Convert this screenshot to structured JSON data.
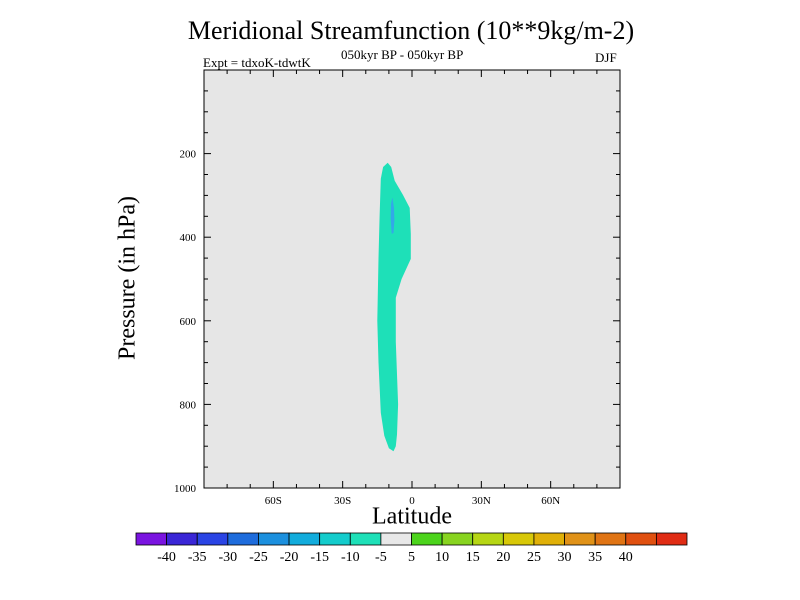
{
  "chart_data": {
    "type": "heatmap",
    "title": "Meridional Streamfunction (10**9kg/m-2)",
    "subtitle": "050kyr BP - 050kyr BP",
    "left_label": "Expt = tdxoK-tdwtK",
    "right_label": "DJF",
    "xlabel": "Latitude",
    "ylabel": "Pressure (in hPa)",
    "x_ticks": [
      {
        "value": -60,
        "label": "60S"
      },
      {
        "value": -30,
        "label": "30S"
      },
      {
        "value": 0,
        "label": "0"
      },
      {
        "value": 30,
        "label": "30N"
      },
      {
        "value": 60,
        "label": "60N"
      }
    ],
    "y_ticks": [
      {
        "value": 200,
        "label": "200"
      },
      {
        "value": 400,
        "label": "400"
      },
      {
        "value": 600,
        "label": "600"
      },
      {
        "value": 800,
        "label": "800"
      },
      {
        "value": 1000,
        "label": "1000"
      }
    ],
    "xlim": [
      -90,
      90
    ],
    "ylim": [
      0,
      1000
    ],
    "y_inverted": true,
    "background_fill": "#e6e6e6",
    "regions": [
      {
        "value_range": [
          -10,
          -5
        ],
        "color": "#1ee0b8",
        "outline": [
          [
            -10.5,
            222
          ],
          [
            -9,
            232
          ],
          [
            -7.5,
            265
          ],
          [
            -4,
            298
          ],
          [
            -1,
            330
          ],
          [
            -0.5,
            392
          ],
          [
            -0.5,
            452
          ],
          [
            -4.5,
            500
          ],
          [
            -7,
            545
          ],
          [
            -7,
            650
          ],
          [
            -6,
            800
          ],
          [
            -6.5,
            872
          ],
          [
            -7,
            900
          ],
          [
            -8,
            912
          ],
          [
            -10,
            905
          ],
          [
            -12,
            875
          ],
          [
            -13.5,
            820
          ],
          [
            -14.5,
            700
          ],
          [
            -15,
            600
          ],
          [
            -14.5,
            450
          ],
          [
            -14,
            350
          ],
          [
            -13.5,
            260
          ],
          [
            -12.5,
            232
          ]
        ]
      },
      {
        "value_range": [
          -15,
          -10
        ],
        "color": "#33a8e8",
        "outline": [
          [
            -8.5,
            305
          ],
          [
            -7.8,
            330
          ],
          [
            -7.6,
            360
          ],
          [
            -8,
            390
          ],
          [
            -8.8,
            392
          ],
          [
            -9.2,
            355
          ],
          [
            -9.1,
            320
          ]
        ]
      }
    ],
    "colorbar": {
      "colors": [
        "#7a14e0",
        "#3a26d6",
        "#2a44e4",
        "#1e6cdc",
        "#1c90de",
        "#12acdc",
        "#14cccc",
        "#1ee0b8",
        "#e8e8e8",
        "#4cd41c",
        "#88d420",
        "#b6d614",
        "#d8c808",
        "#e0b008",
        "#e09218",
        "#e07414",
        "#e05010",
        "#e02c14"
      ],
      "labels": [
        "-40",
        "-35",
        "-30",
        "-25",
        "-20",
        "-15",
        "-10",
        "-5",
        "5",
        "10",
        "15",
        "20",
        "25",
        "30",
        "35",
        "40"
      ]
    }
  }
}
